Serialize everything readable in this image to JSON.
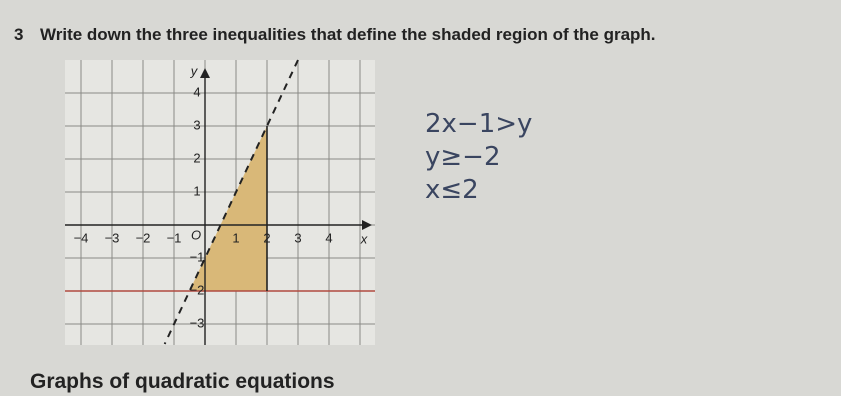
{
  "question": {
    "number": "3",
    "text": "Write down the three inequalities that define the shaded region of the graph."
  },
  "graph": {
    "x_axis_label": "x",
    "y_axis_label": "y",
    "origin_label": "O",
    "x_tick_labels": [
      "−4",
      "−3",
      "−2",
      "−1",
      "1",
      "2",
      "3",
      "4"
    ],
    "y_tick_labels": [
      "4",
      "3",
      "2",
      "1",
      "−1",
      "−2",
      "−3"
    ]
  },
  "answers": [
    "2x−1>y",
    "y≥−2",
    "x≤2"
  ],
  "footer": "Graphs of quadratic equations"
}
